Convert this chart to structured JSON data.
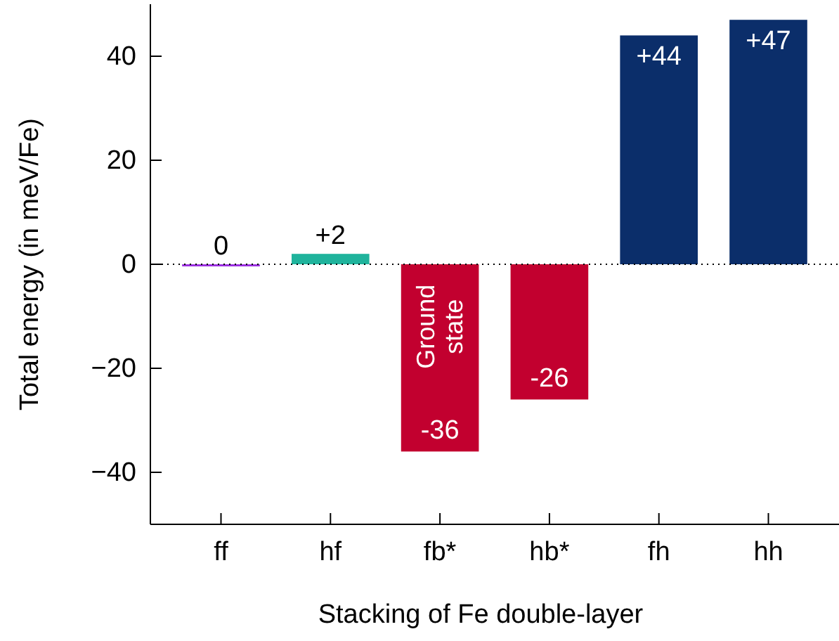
{
  "chart_data": {
    "type": "bar",
    "xlabel": "Stacking of Fe double-layer",
    "ylabel": "Total energy (in meV/Fe)",
    "categories": [
      "ff",
      "hf",
      "fb*",
      "hb*",
      "fh",
      "hh"
    ],
    "values": [
      0,
      2,
      -36,
      -26,
      44,
      47
    ],
    "colors": [
      "#9b30e0",
      "#1fb39c",
      "#c2002f",
      "#c2002f",
      "#0b2e6a",
      "#0b2e6a"
    ],
    "value_labels": [
      "0",
      "+2",
      "-36",
      "-26",
      "+44",
      "+47"
    ],
    "ylim": [
      -50,
      50
    ],
    "yticks": [
      {
        "value": -40,
        "label": "−40"
      },
      {
        "value": -20,
        "label": "−20"
      },
      0,
      20,
      40
    ],
    "ref_lines": [
      {
        "axis": "y",
        "value": 0,
        "color": "#000000",
        "line_style": "dotted"
      }
    ],
    "annotations": [
      "Ground state"
    ]
  }
}
